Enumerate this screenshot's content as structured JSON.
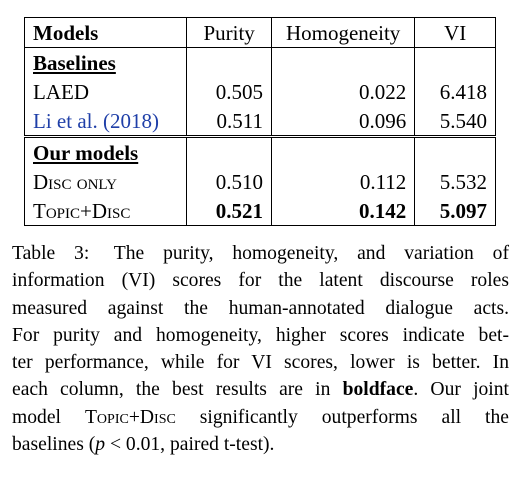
{
  "table": {
    "headers": {
      "model": "Models",
      "purity": "Purity",
      "homogeneity": "Homogeneity",
      "vi": "VI"
    },
    "sections": [
      {
        "label": "Baselines",
        "rows": [
          {
            "model": "LAED",
            "purity": "0.505",
            "homogeneity": "0.022",
            "vi": "6.418"
          },
          {
            "model": "Li et al. (2018)",
            "purity": "0.511",
            "homogeneity": "0.096",
            "vi": "5.540"
          }
        ]
      },
      {
        "label": "Our models",
        "rows": [
          {
            "model": "Disc only",
            "purity": "0.510",
            "homogeneity": "0.112",
            "vi": "5.532"
          },
          {
            "model": "Topic+Disc",
            "purity": "0.521",
            "homogeneity": "0.142",
            "vi": "5.097"
          }
        ]
      }
    ]
  },
  "caption": {
    "label": "Table 3:",
    "lines": [
      "The purity, homogeneity, and variation of",
      "information (VI) scores for the latent discourse roles",
      "measured against the human-annotated dialogue acts.",
      "For purity and homogeneity, higher scores indicate bet-",
      "ter performance, while for VI scores, lower is better. In",
      "each column, the best results are in ",
      "boldface",
      ". Our joint",
      "model ",
      "Topic+Disc",
      " significantly outperforms all the",
      "baselines (",
      "p",
      " < 0.01, paired t-test)."
    ]
  }
}
